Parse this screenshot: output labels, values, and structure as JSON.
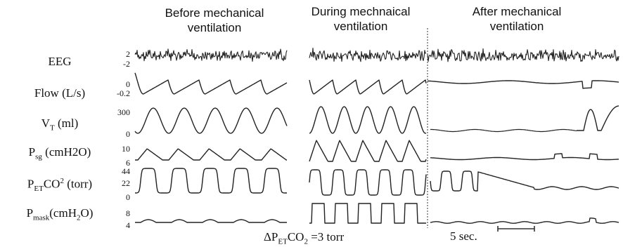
{
  "chart_data": {
    "type": "line",
    "phases": [
      {
        "title_line1": "Before mechanical",
        "title_line2": "ventilation"
      },
      {
        "title_line1": "During mechnaical",
        "title_line2": "ventilation"
      },
      {
        "title_line1": "After mechanical",
        "title_line2": "ventilation"
      }
    ],
    "channels": [
      {
        "id": "eeg",
        "label": "EEG",
        "ticks": [
          "2",
          "-2"
        ]
      },
      {
        "id": "flow",
        "label_main": "Flow (L/s)",
        "ticks": [
          "0",
          "-0.2"
        ]
      },
      {
        "id": "vt",
        "label_main": "V",
        "label_sub": "T",
        "label_tail": " (ml)",
        "ticks": [
          "300",
          "0"
        ]
      },
      {
        "id": "psg",
        "label_main": "P",
        "label_sub": "sg",
        "label_tail": " (cmH2O)",
        "ticks": [
          "10",
          "6"
        ]
      },
      {
        "id": "petco2",
        "label_main": "P",
        "label_sub": "ET",
        "label_mid": "CO",
        "label_sup": "2",
        "label_tail": " (torr)",
        "ticks": [
          "44",
          "22",
          "0"
        ]
      },
      {
        "id": "pmask",
        "label_main": "P",
        "label_sub": "mask",
        "label_mid": "(cmH",
        "label_sub2": "2",
        "label_tail": "O)",
        "ticks": [
          "8",
          "4"
        ]
      }
    ],
    "annotation": {
      "prefix": "ΔP",
      "sub1": "ET",
      "mid": "CO",
      "sub2": "2",
      "suffix": " =3 torr"
    },
    "scale_bar_label": "5 sec."
  }
}
